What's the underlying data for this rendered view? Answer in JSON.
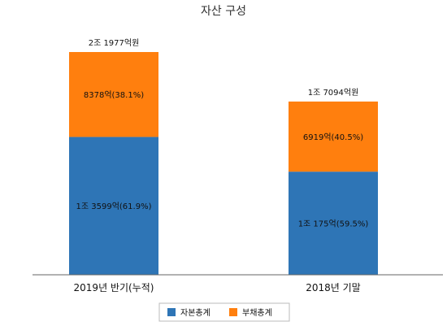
{
  "chart_data": {
    "type": "bar",
    "stacked": true,
    "title": "자산 구성",
    "categories": [
      "2019년 반기(누적)",
      "2018년 기말"
    ],
    "totals": [
      "2조 1977억원",
      "1조 7094억원"
    ],
    "total_values": [
      21977,
      17094
    ],
    "series": [
      {
        "name": "자본총계",
        "color": "#2e75b6",
        "values": [
          13599,
          10175
        ],
        "labels": [
          "1조 3599억(61.9%)",
          "1조 175억(59.5%)"
        ]
      },
      {
        "name": "부채총계",
        "color": "#ff7f0e",
        "values": [
          8378,
          6919
        ],
        "labels": [
          "8378억(38.1%)",
          "6919억(40.5%)"
        ]
      }
    ],
    "ylim": [
      0,
      21977
    ],
    "grid": false,
    "legend": "bottom"
  }
}
